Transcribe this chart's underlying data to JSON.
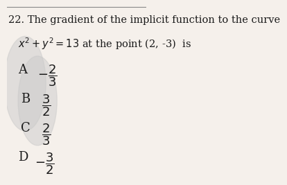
{
  "title_line1": "22. The gradient of the implicit function to the curve",
  "title_line2": "$x^2 + y^2 = 13$ at the point (2, -3)  is",
  "option_A_label": "A",
  "option_A_value": "$-\\dfrac{2}{3}$",
  "option_B_label": "B",
  "option_B_value": "$\\dfrac{3}{2}$",
  "option_C_label": "C",
  "option_C_value": "$\\dfrac{2}{3}$",
  "option_D_label": "D",
  "option_D_value": "$-\\dfrac{3}{2}$",
  "bg_color": "#f5f0eb",
  "text_color": "#1a1a1a",
  "circle_color": "#c8c8c8",
  "circle_alpha": 0.45,
  "font_size_title": 10.5,
  "font_size_option": 13
}
